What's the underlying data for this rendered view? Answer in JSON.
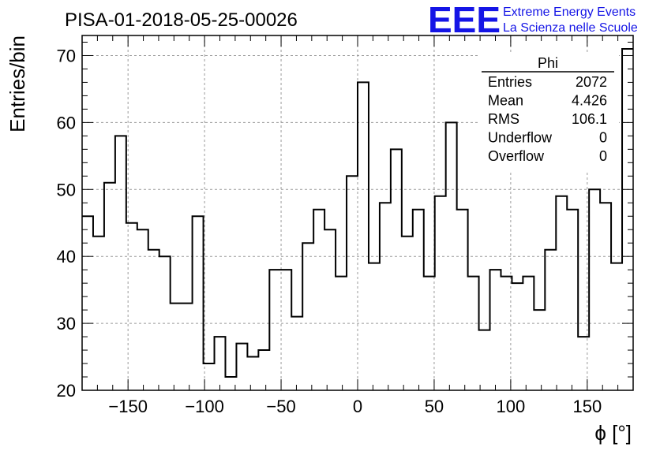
{
  "header": {
    "title": "PISA-01-2018-05-25-00026",
    "logo_mark": "EEE",
    "logo_line1": "Extreme Energy Events",
    "logo_line2": "La Scienza nelle Scuole",
    "logo_color": "#1515e6"
  },
  "stats": {
    "name": "Phi",
    "rows": [
      {
        "label": "Entries",
        "value": "2072"
      },
      {
        "label": "Mean",
        "value": "4.426"
      },
      {
        "label": "RMS",
        "value": "106.1"
      },
      {
        "label": "Underflow",
        "value": "0"
      },
      {
        "label": "Overflow",
        "value": "0"
      }
    ]
  },
  "chart_data": {
    "type": "bar",
    "histogram": "step",
    "xlabel": "ϕ [°]",
    "ylabel": "Entries/bin",
    "xlim": [
      -180,
      180
    ],
    "ylim": [
      20,
      73
    ],
    "grid": true,
    "bin_width": 7.2,
    "x_ticks": [
      -150,
      -100,
      -50,
      0,
      50,
      100,
      150
    ],
    "x_tick_labels": [
      "−150",
      "−100",
      "−50",
      "0",
      "50",
      "100",
      "150"
    ],
    "y_ticks": [
      20,
      30,
      40,
      50,
      60,
      70
    ],
    "y_tick_labels": [
      "20",
      "30",
      "40",
      "50",
      "60",
      "70"
    ],
    "values": [
      46,
      43,
      51,
      58,
      45,
      44,
      41,
      40,
      33,
      33,
      46,
      24,
      28,
      22,
      27,
      25,
      26,
      38,
      38,
      31,
      42,
      47,
      44,
      37,
      52,
      66,
      39,
      48,
      56,
      43,
      47,
      37,
      49,
      60,
      47,
      37,
      29,
      38,
      37,
      36,
      37,
      32,
      41,
      49,
      47,
      28,
      50,
      48,
      39,
      71
    ]
  }
}
